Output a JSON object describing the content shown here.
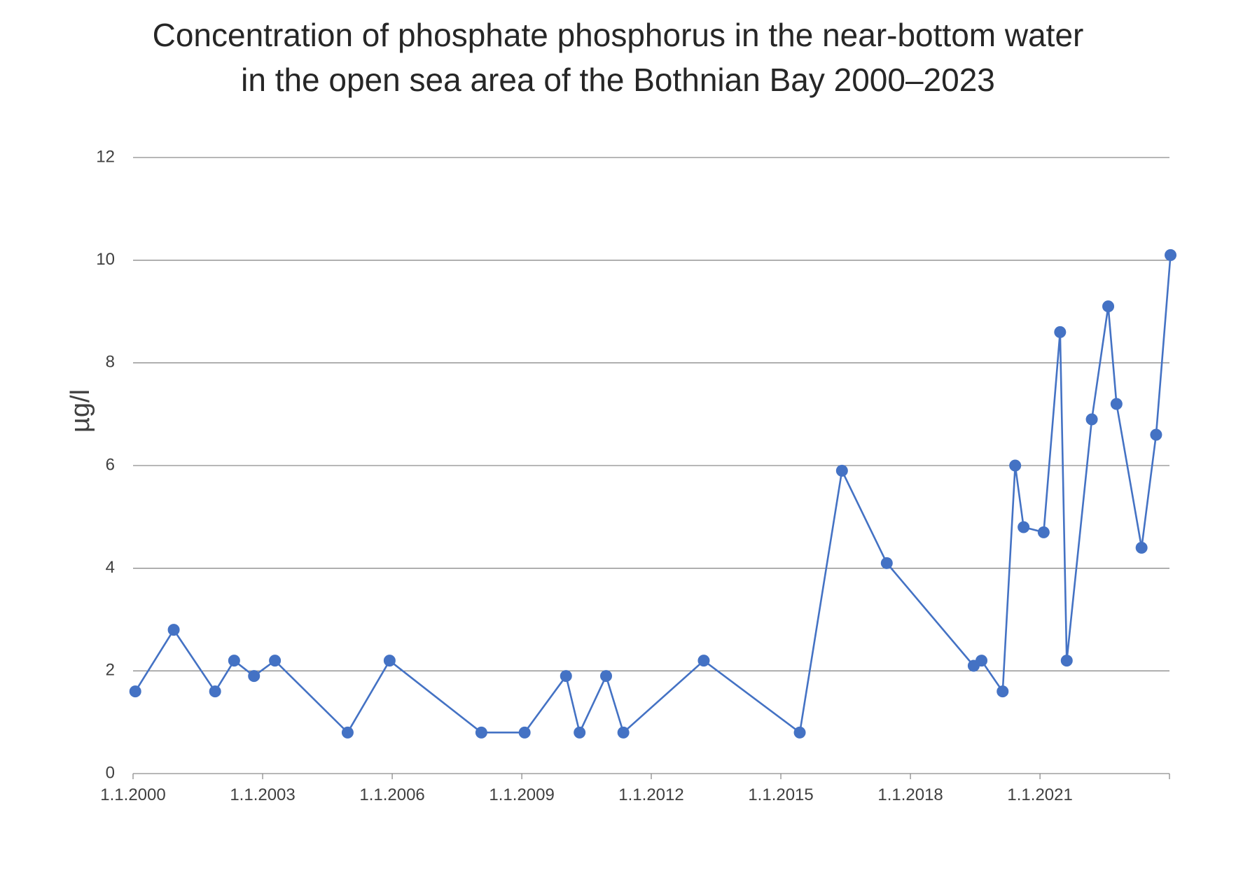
{
  "chart_data": {
    "type": "line",
    "title_lines": [
      "Concentration of phosphate phosphorus in the near-bottom water",
      "in the open sea area of the Bothnian Bay 2000–2023"
    ],
    "xlabel": "",
    "ylabel": "µg/l",
    "x_axis": {
      "type": "date",
      "range": [
        "2000-01-01",
        "2024-01-01"
      ],
      "tick_labels": [
        "1.1.2000",
        "1.1.2003",
        "1.1.2006",
        "1.1.2009",
        "1.1.2012",
        "1.1.2015",
        "1.1.2018",
        "1.1.2021"
      ]
    },
    "ylim": [
      0,
      12
    ],
    "y_ticks": [
      0,
      2,
      4,
      6,
      8,
      10,
      12
    ],
    "grid": "horizontal",
    "legend": "none",
    "color": "#4472C4",
    "series": [
      {
        "x": [
          "2000-01-20",
          "2000-12-10",
          "2001-11-25",
          "2002-05-05",
          "2002-10-20",
          "2003-04-15",
          "2004-12-20",
          "2005-12-10",
          "2008-01-25",
          "2009-01-25",
          "2010-01-10",
          "2010-05-05",
          "2010-12-15",
          "2011-05-10",
          "2013-03-20",
          "2015-06-10",
          "2016-06-01",
          "2017-06-15",
          "2019-06-20",
          "2019-08-25",
          "2020-02-20",
          "2020-06-05",
          "2020-08-15",
          "2021-02-01",
          "2021-06-20",
          "2021-08-15",
          "2022-03-15",
          "2022-08-01",
          "2022-10-10",
          "2023-05-10",
          "2023-09-10",
          "2024-01-10"
        ],
        "values": [
          1.6,
          2.8,
          1.6,
          2.2,
          1.9,
          2.2,
          0.8,
          2.2,
          0.8,
          0.8,
          1.9,
          0.8,
          1.9,
          0.8,
          2.2,
          0.8,
          5.9,
          4.1,
          2.1,
          2.2,
          1.6,
          6.0,
          4.8,
          4.7,
          8.6,
          2.2,
          6.9,
          9.1,
          7.2,
          4.4,
          6.6,
          10.1
        ]
      }
    ]
  }
}
